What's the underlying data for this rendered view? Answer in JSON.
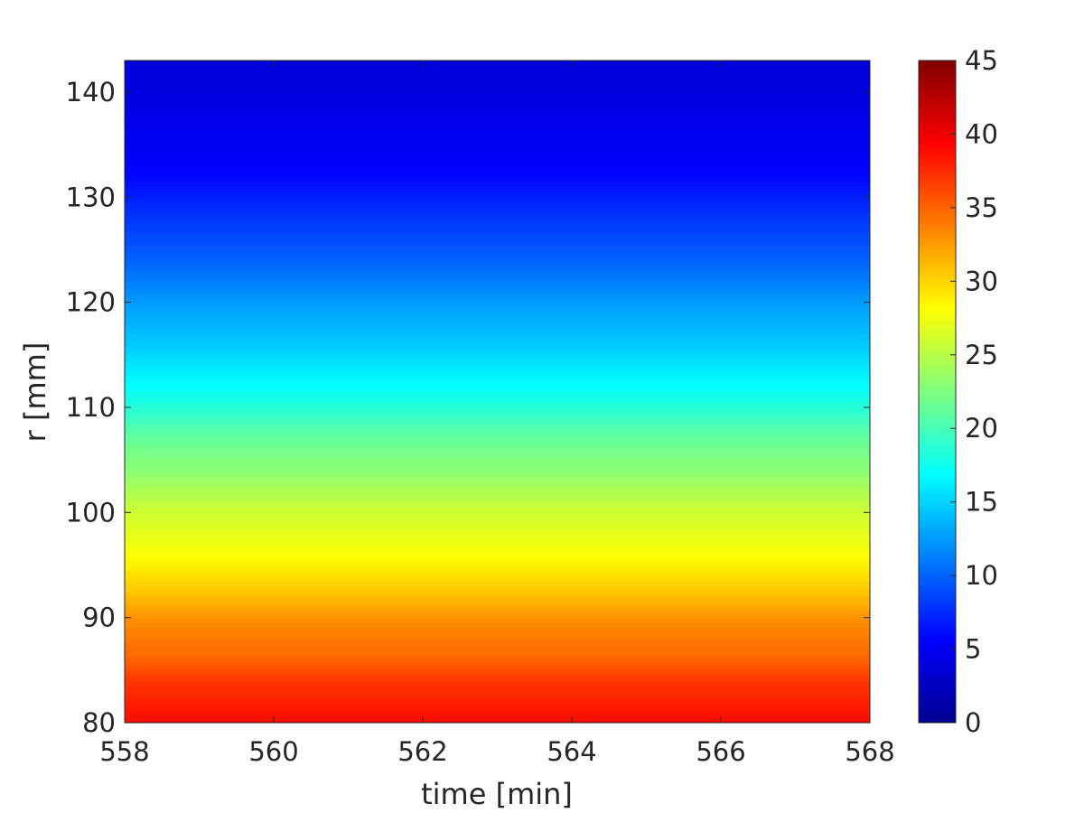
{
  "chart_data": {
    "type": "heatmap",
    "title": "",
    "xlabel": "time [min]",
    "ylabel": "r [mm]",
    "xlim": [
      558,
      568
    ],
    "ylim": [
      80,
      143
    ],
    "x_ticks": [
      "558",
      "560",
      "562",
      "564",
      "566",
      "568"
    ],
    "y_ticks": [
      "80",
      "90",
      "100",
      "110",
      "120",
      "130",
      "140"
    ],
    "colormap": "jet",
    "clim": [
      0,
      45
    ],
    "colorbar": {
      "position": "right",
      "ticks": [
        "0",
        "5",
        "10",
        "15",
        "20",
        "25",
        "30",
        "35",
        "40",
        "45"
      ]
    },
    "grid": false,
    "z_profile_along_r": {
      "r": [
        80,
        82,
        84,
        86,
        88,
        90,
        92,
        94,
        96,
        98,
        100,
        102,
        104,
        106,
        108,
        110,
        112,
        114,
        116,
        118,
        120,
        122,
        124,
        126,
        128,
        130,
        132,
        134,
        136,
        138,
        140,
        143
      ],
      "value": [
        39,
        38,
        37,
        35,
        34,
        33,
        31,
        29.5,
        28,
        27,
        26,
        24.5,
        23,
        22,
        20.5,
        18.5,
        17,
        15.8,
        14.5,
        13.5,
        12.5,
        11.2,
        10,
        9,
        8,
        7,
        5.8,
        5.4,
        5,
        4.6,
        4.3,
        4
      ]
    },
    "note_values_constant_in_time": true
  }
}
